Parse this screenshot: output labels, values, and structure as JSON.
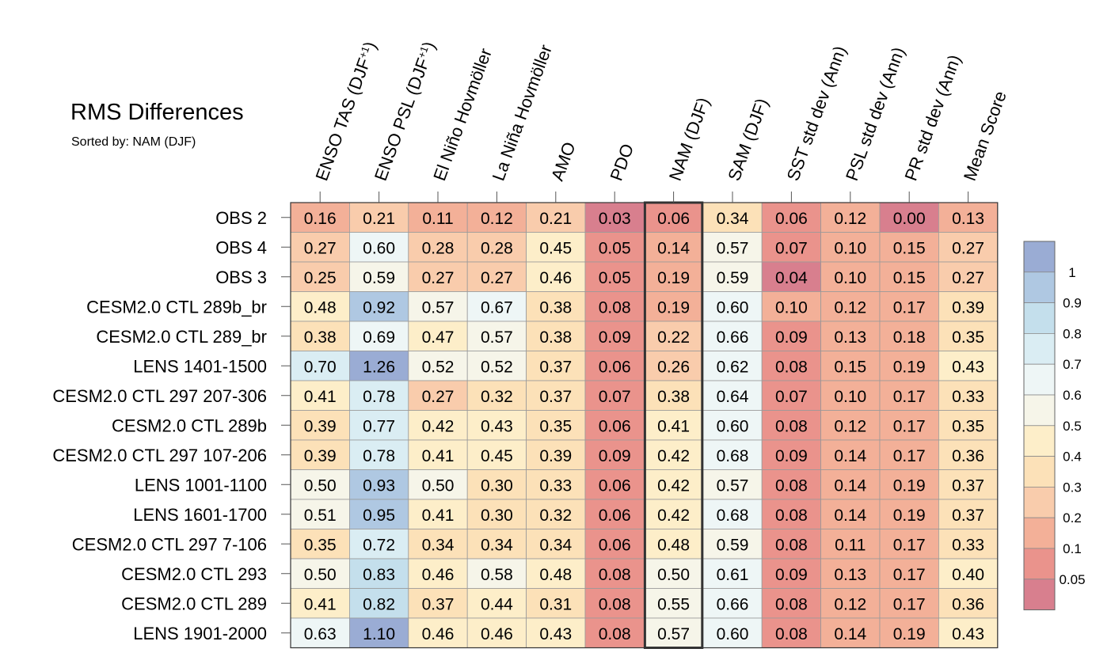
{
  "chart_data": {
    "type": "heatmap",
    "title": "RMS Differences",
    "subtitle": "Sorted by: NAM (DJF)",
    "columns": [
      {
        "label": "ENSO TAS (DJF",
        "sup": "+1",
        "close": ")"
      },
      {
        "label": "ENSO PSL (DJF",
        "sup": "+1",
        "close": ")"
      },
      {
        "label": "El Niño Hovmöller",
        "sup": "",
        "close": ""
      },
      {
        "label": "La Niña Hovmöller",
        "sup": "",
        "close": ""
      },
      {
        "label": "AMO",
        "sup": "",
        "close": ""
      },
      {
        "label": "PDO",
        "sup": "",
        "close": ""
      },
      {
        "label": "NAM (DJF)",
        "sup": "",
        "close": ""
      },
      {
        "label": "SAM (DJF)",
        "sup": "",
        "close": ""
      },
      {
        "label": "SST std dev (Ann)",
        "sup": "",
        "close": ""
      },
      {
        "label": "PSL std dev (Ann)",
        "sup": "",
        "close": ""
      },
      {
        "label": "PR std dev (Ann)",
        "sup": "",
        "close": ""
      },
      {
        "label": "Mean Score",
        "sup": "",
        "close": ""
      }
    ],
    "sorted_column_index": 6,
    "rows": [
      "OBS 2",
      "OBS 4",
      "OBS 3",
      "CESM2.0 CTL 289b_br",
      "CESM2.0 CTL 289_br",
      "LENS 1401-1500",
      "CESM2.0 CTL 297 207-306",
      "CESM2.0 CTL 289b",
      "CESM2.0 CTL 297 107-206",
      "LENS 1001-1100",
      "LENS 1601-1700",
      "CESM2.0 CTL 297 7-106",
      "CESM2.0 CTL 293",
      "CESM2.0 CTL 289",
      "LENS 1901-2000"
    ],
    "values": [
      [
        "0.16",
        "0.21",
        "0.11",
        "0.12",
        "0.21",
        "0.03",
        "0.06",
        "0.34",
        "0.06",
        "0.12",
        "0.00",
        "0.13"
      ],
      [
        "0.27",
        "0.60",
        "0.28",
        "0.28",
        "0.45",
        "0.05",
        "0.14",
        "0.57",
        "0.07",
        "0.10",
        "0.15",
        "0.27"
      ],
      [
        "0.25",
        "0.59",
        "0.27",
        "0.27",
        "0.46",
        "0.05",
        "0.19",
        "0.59",
        "0.04",
        "0.10",
        "0.15",
        "0.27"
      ],
      [
        "0.48",
        "0.92",
        "0.57",
        "0.67",
        "0.38",
        "0.08",
        "0.19",
        "0.60",
        "0.10",
        "0.12",
        "0.17",
        "0.39"
      ],
      [
        "0.38",
        "0.69",
        "0.47",
        "0.57",
        "0.38",
        "0.09",
        "0.22",
        "0.66",
        "0.09",
        "0.13",
        "0.18",
        "0.35"
      ],
      [
        "0.70",
        "1.26",
        "0.52",
        "0.52",
        "0.37",
        "0.06",
        "0.26",
        "0.62",
        "0.08",
        "0.15",
        "0.19",
        "0.43"
      ],
      [
        "0.41",
        "0.78",
        "0.27",
        "0.32",
        "0.37",
        "0.07",
        "0.38",
        "0.64",
        "0.07",
        "0.10",
        "0.17",
        "0.33"
      ],
      [
        "0.39",
        "0.77",
        "0.42",
        "0.43",
        "0.35",
        "0.06",
        "0.41",
        "0.60",
        "0.08",
        "0.12",
        "0.17",
        "0.35"
      ],
      [
        "0.39",
        "0.78",
        "0.41",
        "0.45",
        "0.39",
        "0.09",
        "0.42",
        "0.68",
        "0.09",
        "0.14",
        "0.17",
        "0.36"
      ],
      [
        "0.50",
        "0.93",
        "0.50",
        "0.30",
        "0.33",
        "0.06",
        "0.42",
        "0.57",
        "0.08",
        "0.14",
        "0.19",
        "0.37"
      ],
      [
        "0.51",
        "0.95",
        "0.41",
        "0.30",
        "0.32",
        "0.06",
        "0.42",
        "0.68",
        "0.08",
        "0.14",
        "0.19",
        "0.37"
      ],
      [
        "0.35",
        "0.72",
        "0.34",
        "0.34",
        "0.34",
        "0.06",
        "0.48",
        "0.59",
        "0.08",
        "0.11",
        "0.17",
        "0.33"
      ],
      [
        "0.50",
        "0.83",
        "0.46",
        "0.58",
        "0.48",
        "0.08",
        "0.50",
        "0.61",
        "0.09",
        "0.13",
        "0.17",
        "0.40"
      ],
      [
        "0.41",
        "0.82",
        "0.37",
        "0.44",
        "0.31",
        "0.08",
        "0.55",
        "0.66",
        "0.08",
        "0.12",
        "0.17",
        "0.36"
      ],
      [
        "0.63",
        "1.10",
        "0.46",
        "0.46",
        "0.43",
        "0.08",
        "0.57",
        "0.60",
        "0.08",
        "0.14",
        "0.19",
        "0.43"
      ]
    ],
    "colorbar": {
      "levels": [
        "1",
        "0.9",
        "0.8",
        "0.7",
        "0.6",
        "0.5",
        "0.4",
        "0.3",
        "0.2",
        "0.1",
        "0.05"
      ],
      "colors": [
        "#9aacd4",
        "#afc8e2",
        "#c4dfec",
        "#daedf3",
        "#eef6f6",
        "#f6f5e9",
        "#fdeec9",
        "#fce1b8",
        "#f9ccac",
        "#f3b098",
        "#ea938c",
        "#d87f8e"
      ]
    }
  }
}
